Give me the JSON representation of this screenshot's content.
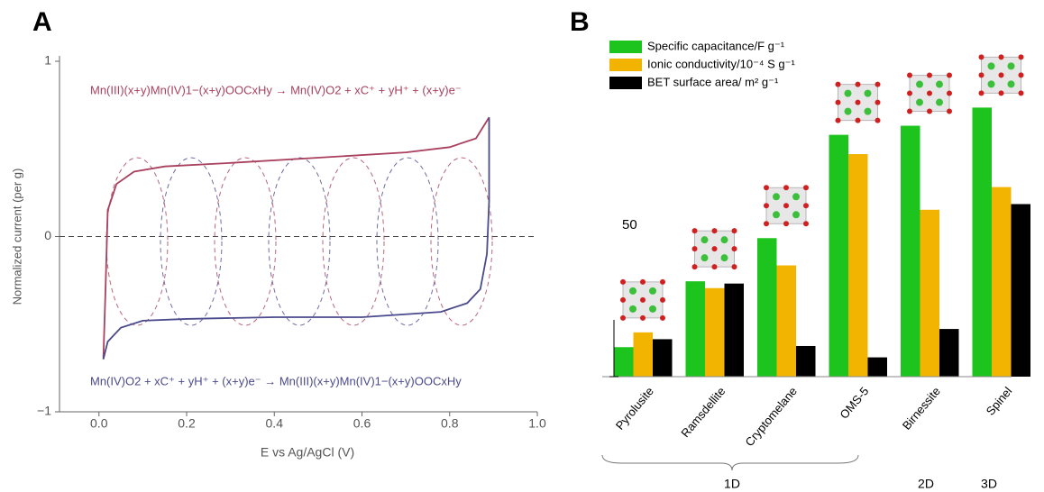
{
  "chart_data": [
    {
      "type": "line",
      "panel": "A",
      "xlabel": "E vs Ag/AgCl (V)",
      "ylabel": "Normalized current (per g)",
      "xlim": [
        -0.09,
        1.0
      ],
      "xticks": [
        {
          "value": 0,
          "label": "0.0"
        },
        0.2,
        0.4,
        0.6,
        0.8,
        {
          "value": 1,
          "label": "1.0"
        }
      ],
      "ylim": [
        -1,
        1
      ],
      "yticks": [
        {
          "value": -1,
          "label": "−1"
        },
        0,
        1
      ],
      "annotations": [
        "Mn(III)(x+y)Mn(IV)1−(x+y)OOCxHy → Mn(IV)O2 + xC⁺ + yH⁺ + (x+y)e⁻",
        "Mn(IV)O2 + xC⁺ + yH⁺ + (x+y)e⁻ → Mn(III)(x+y)Mn(IV)1−(x+y)OOCxHy"
      ],
      "series": [
        {
          "color": "#a8405e",
          "x": [
            0.01,
            0.015,
            0.02,
            0.04,
            0.08,
            0.15,
            0.3,
            0.5,
            0.7,
            0.8,
            0.86,
            0.89
          ],
          "values": [
            -0.7,
            -0.3,
            0.15,
            0.3,
            0.37,
            0.4,
            0.42,
            0.45,
            0.48,
            0.51,
            0.56,
            0.68
          ]
        },
        {
          "color": "#4a4a8c",
          "x": [
            0.89,
            0.89,
            0.885,
            0.87,
            0.84,
            0.78,
            0.6,
            0.4,
            0.2,
            0.1,
            0.05,
            0.02,
            0.01
          ],
          "values": [
            0.68,
            0.2,
            -0.1,
            -0.3,
            -0.38,
            -0.43,
            -0.46,
            -0.46,
            -0.47,
            -0.48,
            -0.52,
            -0.6,
            -0.7
          ]
        }
      ]
    },
    {
      "type": "bar",
      "panel": "B",
      "categories": [
        "Pyrolusite",
        "Ramsdellite",
        "Cryptomelane",
        "OMS-5",
        "Birnessite",
        "Spinel"
      ],
      "ylim": [
        0,
        250
      ],
      "scale_bar": 50,
      "groups": [
        "1D",
        "2D",
        "3D"
      ],
      "series": [
        {
          "name": "Specific capacitance/F g⁻¹",
          "color": "#1ec41e",
          "values": [
            26,
            84,
            122,
            213,
            221,
            237
          ]
        },
        {
          "name": "Ionic conductivity/10⁻⁴ S g⁻¹",
          "color": "#f2b400",
          "values": [
            39,
            78,
            98,
            196,
            147,
            167
          ]
        },
        {
          "name": "BET surface area/ m² g⁻¹",
          "color": "#000000",
          "values": [
            33,
            82,
            27,
            17,
            42,
            152
          ]
        }
      ]
    }
  ]
}
